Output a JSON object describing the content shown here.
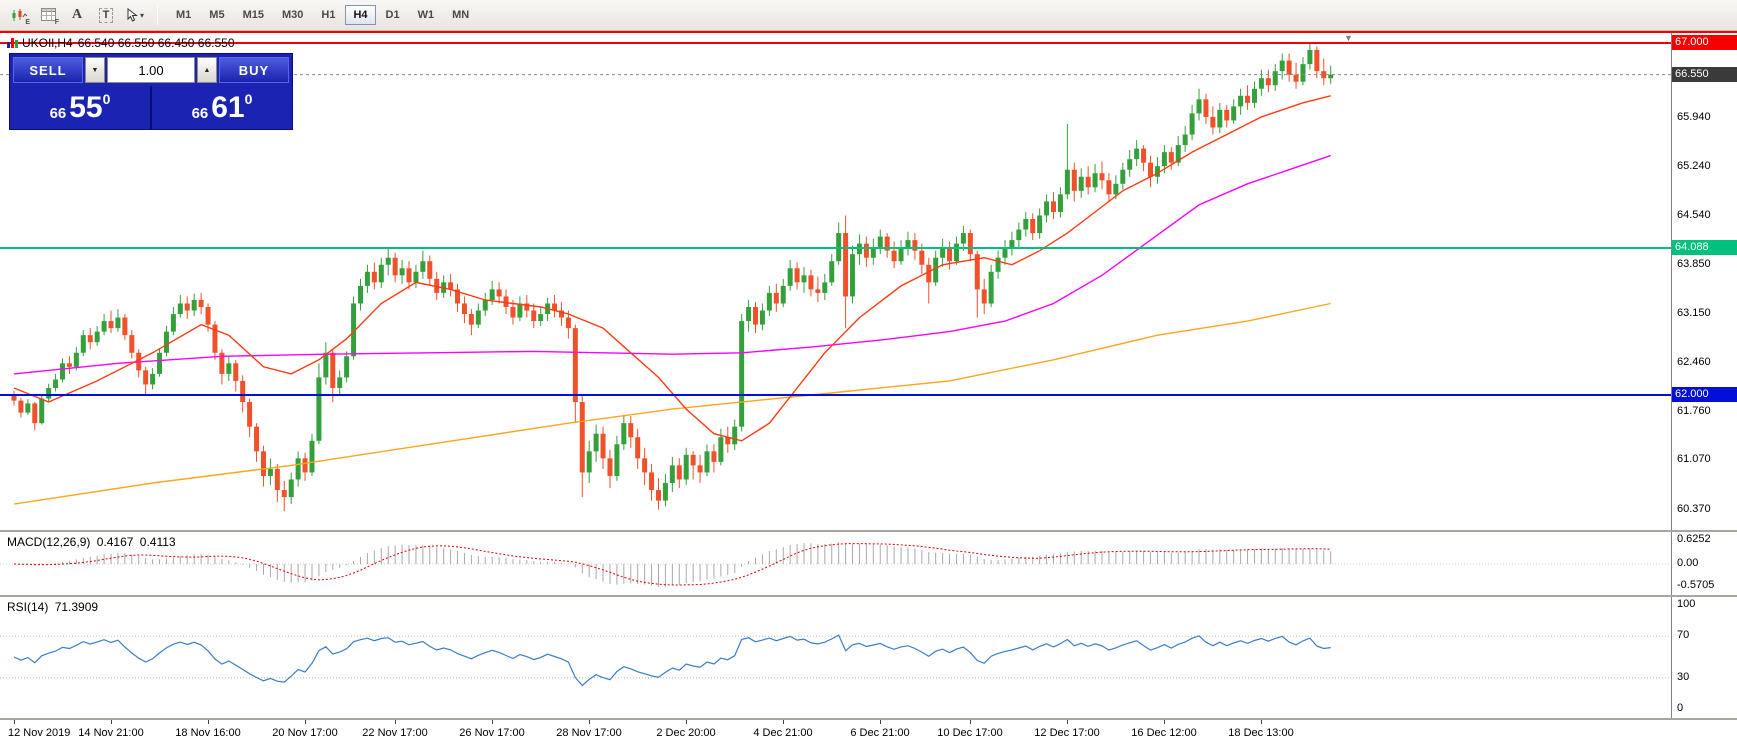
{
  "toolbar": {
    "tools": [
      {
        "name": "expert-advisors",
        "sub": "E"
      },
      {
        "name": "data-grid",
        "sub": "F"
      },
      {
        "name": "font-tool",
        "label": "A"
      },
      {
        "name": "text-tool",
        "label": "T"
      },
      {
        "name": "cursor-tool",
        "label": ""
      }
    ],
    "timeframes": [
      "M1",
      "M5",
      "M15",
      "M30",
      "H1",
      "H4",
      "D1",
      "W1",
      "MN"
    ],
    "active_timeframe": "H4"
  },
  "chart_header": {
    "title_symbol": "UKOIl,H4",
    "ohlc": "66.540 66.550 66.450 66.550"
  },
  "trade_panel": {
    "sell_label": "SELL",
    "buy_label": "BUY",
    "volume": "1.00",
    "sell_price": {
      "big_prefix": "66",
      "pips": "55",
      "sup": "0"
    },
    "buy_price": {
      "big_prefix": "66",
      "pips": "61",
      "sup": "0"
    }
  },
  "macd_panel": {
    "label": "MACD(12,26,9)",
    "value_main": "0.4167",
    "value_signal": "0.4113",
    "axis": [
      "0.6252",
      "0.00",
      "-0.5705"
    ]
  },
  "rsi_panel": {
    "label": "RSI(14)",
    "value": "71.3909",
    "axis": [
      "100",
      "70",
      "30",
      "0"
    ],
    "levels": [
      70,
      30
    ]
  },
  "chart_data": {
    "type": "candlestick",
    "symbol": "UKOIl",
    "timeframe": "H4",
    "title": "UKOIl,H4 66.540 66.550 66.450 66.550",
    "current_price": 66.55,
    "open_first": 62.0,
    "ylim": [
      60.37,
      67.0
    ],
    "colors": {
      "bull": "#33a03c",
      "bear": "#f0502a",
      "ma_fast": "#ff3b12",
      "ma_mid": "#ff00ff",
      "ma_slow": "#ffa51e",
      "rsi": "#3b7dc8",
      "macd_hist": "#a8a8a8",
      "macd_signal": "#e00000",
      "level_red": "#f40000",
      "level_green": "#00c07d",
      "level_blue": "#0010d8"
    },
    "price_axis": [
      {
        "label": "67.000",
        "value": 67.0,
        "style": "red"
      },
      {
        "label": "66.550",
        "value": 66.55,
        "style": "current"
      },
      {
        "label": "65.940",
        "value": 65.94,
        "style": "plain"
      },
      {
        "label": "65.240",
        "value": 65.24,
        "style": "plain"
      },
      {
        "label": "64.540",
        "value": 64.54,
        "style": "plain"
      },
      {
        "label": "64.088",
        "value": 64.088,
        "style": "green"
      },
      {
        "label": "63.850",
        "value": 63.85,
        "style": "plain"
      },
      {
        "label": "63.150",
        "value": 63.15,
        "style": "plain"
      },
      {
        "label": "62.460",
        "value": 62.46,
        "style": "plain"
      },
      {
        "label": "62.000",
        "value": 62.0,
        "style": "blue"
      },
      {
        "label": "61.760",
        "value": 61.76,
        "style": "plain"
      },
      {
        "label": "61.070",
        "value": 61.07,
        "style": "plain"
      },
      {
        "label": "60.370",
        "value": 60.37,
        "style": "plain"
      }
    ],
    "levels": [
      {
        "value": 67.0,
        "color": "#f40000"
      },
      {
        "value": 64.088,
        "color": "#00c07d"
      },
      {
        "value": 62.0,
        "color": "#0010d8"
      }
    ],
    "time_axis": [
      {
        "label": "12 Nov 2019",
        "i": 0
      },
      {
        "label": "14 Nov 21:00",
        "i": 14
      },
      {
        "label": "18 Nov 16:00",
        "i": 28
      },
      {
        "label": "20 Nov 17:00",
        "i": 42
      },
      {
        "label": "22 Nov 17:00",
        "i": 55
      },
      {
        "label": "26 Nov 17:00",
        "i": 69
      },
      {
        "label": "28 Nov 17:00",
        "i": 83
      },
      {
        "label": "2 Dec 20:00",
        "i": 97
      },
      {
        "label": "4 Dec 21:00",
        "i": 111
      },
      {
        "label": "6 Dec 21:00",
        "i": 125
      },
      {
        "label": "10 Dec 17:00",
        "i": 138
      },
      {
        "label": "12 Dec 17:00",
        "i": 152
      },
      {
        "label": "16 Dec 12:00",
        "i": 166
      },
      {
        "label": "18 Dec 13:00",
        "i": 180
      }
    ],
    "ma_fast": [
      [
        0,
        62.1
      ],
      [
        5,
        61.9
      ],
      [
        12,
        62.2
      ],
      [
        20,
        62.6
      ],
      [
        27,
        63.0
      ],
      [
        31,
        62.85
      ],
      [
        36,
        62.4
      ],
      [
        40,
        62.3
      ],
      [
        44,
        62.5
      ],
      [
        48,
        62.8
      ],
      [
        53,
        63.3
      ],
      [
        58,
        63.6
      ],
      [
        63,
        63.5
      ],
      [
        68,
        63.35
      ],
      [
        72,
        63.3
      ],
      [
        76,
        63.25
      ],
      [
        80,
        63.15
      ],
      [
        85,
        62.95
      ],
      [
        89,
        62.6
      ],
      [
        93,
        62.25
      ],
      [
        97,
        61.8
      ],
      [
        101,
        61.45
      ],
      [
        105,
        61.35
      ],
      [
        109,
        61.6
      ],
      [
        113,
        62.1
      ],
      [
        117,
        62.6
      ],
      [
        122,
        63.1
      ],
      [
        128,
        63.55
      ],
      [
        134,
        63.85
      ],
      [
        140,
        63.95
      ],
      [
        144,
        63.85
      ],
      [
        148,
        64.05
      ],
      [
        152,
        64.3
      ],
      [
        156,
        64.6
      ],
      [
        160,
        64.9
      ],
      [
        165,
        65.15
      ],
      [
        170,
        65.45
      ],
      [
        175,
        65.7
      ],
      [
        180,
        65.95
      ],
      [
        186,
        66.15
      ],
      [
        190,
        66.25
      ]
    ],
    "ma_mid": [
      [
        0,
        62.3
      ],
      [
        15,
        62.45
      ],
      [
        30,
        62.55
      ],
      [
        45,
        62.58
      ],
      [
        60,
        62.6
      ],
      [
        75,
        62.62
      ],
      [
        85,
        62.6
      ],
      [
        95,
        62.58
      ],
      [
        105,
        62.6
      ],
      [
        115,
        62.68
      ],
      [
        125,
        62.78
      ],
      [
        135,
        62.9
      ],
      [
        143,
        63.05
      ],
      [
        150,
        63.3
      ],
      [
        157,
        63.7
      ],
      [
        164,
        64.2
      ],
      [
        171,
        64.7
      ],
      [
        178,
        65.0
      ],
      [
        184,
        65.2
      ],
      [
        190,
        65.4
      ]
    ],
    "ma_slow": [
      [
        0,
        60.45
      ],
      [
        20,
        60.75
      ],
      [
        40,
        61.0
      ],
      [
        60,
        61.3
      ],
      [
        80,
        61.6
      ],
      [
        95,
        61.8
      ],
      [
        110,
        61.95
      ],
      [
        120,
        62.05
      ],
      [
        135,
        62.2
      ],
      [
        150,
        62.5
      ],
      [
        165,
        62.85
      ],
      [
        178,
        63.05
      ],
      [
        190,
        63.3
      ]
    ],
    "candles": [
      [
        61.92,
        61.85,
        62.06
      ],
      [
        61.75,
        61.68,
        61.96
      ],
      [
        61.88,
        61.72,
        61.94
      ],
      [
        61.6,
        61.5,
        61.9
      ],
      [
        61.95,
        61.58,
        62.0
      ],
      [
        62.1,
        61.9,
        62.16
      ],
      [
        62.22,
        62.05,
        62.3
      ],
      [
        62.45,
        62.18,
        62.52
      ],
      [
        62.4,
        62.3,
        62.55
      ],
      [
        62.6,
        62.35,
        62.68
      ],
      [
        62.85,
        62.55,
        62.92
      ],
      [
        62.75,
        62.65,
        62.95
      ],
      [
        62.9,
        62.7,
        62.98
      ],
      [
        63.05,
        62.85,
        63.15
      ],
      [
        62.95,
        62.88,
        63.2
      ],
      [
        63.1,
        62.9,
        63.22
      ],
      [
        62.85,
        62.78,
        63.15
      ],
      [
        62.6,
        62.52,
        62.92
      ],
      [
        62.35,
        62.25,
        62.65
      ],
      [
        62.15,
        62.0,
        62.4
      ],
      [
        62.3,
        62.08,
        62.38
      ],
      [
        62.6,
        62.26,
        62.66
      ],
      [
        62.9,
        62.55,
        62.98
      ],
      [
        63.15,
        62.85,
        63.25
      ],
      [
        63.3,
        63.1,
        63.42
      ],
      [
        63.2,
        63.08,
        63.4
      ],
      [
        63.35,
        63.12,
        63.44
      ],
      [
        63.25,
        63.15,
        63.45
      ],
      [
        63.0,
        62.9,
        63.3
      ],
      [
        62.6,
        62.5,
        63.05
      ],
      [
        62.3,
        62.15,
        62.65
      ],
      [
        62.45,
        62.2,
        62.55
      ],
      [
        62.2,
        62.05,
        62.5
      ],
      [
        61.9,
        61.75,
        62.28
      ],
      [
        61.55,
        61.4,
        61.95
      ],
      [
        61.2,
        61.05,
        61.6
      ],
      [
        60.85,
        60.7,
        61.28
      ],
      [
        60.95,
        60.72,
        61.1
      ],
      [
        60.65,
        60.48,
        61.02
      ],
      [
        60.55,
        60.35,
        60.78
      ],
      [
        60.8,
        60.45,
        60.9
      ],
      [
        61.1,
        60.7,
        61.2
      ],
      [
        60.9,
        60.78,
        61.18
      ],
      [
        61.35,
        60.85,
        61.45
      ],
      [
        62.25,
        61.3,
        62.45
      ],
      [
        62.6,
        62.15,
        62.75
      ],
      [
        62.1,
        61.9,
        62.65
      ],
      [
        62.25,
        62.0,
        62.35
      ],
      [
        62.55,
        62.18,
        62.62
      ],
      [
        63.3,
        62.5,
        63.4
      ],
      [
        63.55,
        63.2,
        63.65
      ],
      [
        63.75,
        63.45,
        63.85
      ],
      [
        63.6,
        63.5,
        63.88
      ],
      [
        63.85,
        63.52,
        63.95
      ],
      [
        63.95,
        63.7,
        64.1
      ],
      [
        63.7,
        63.6,
        64.02
      ],
      [
        63.8,
        63.58,
        63.92
      ],
      [
        63.6,
        63.5,
        63.9
      ],
      [
        63.75,
        63.52,
        63.85
      ],
      [
        63.9,
        63.65,
        64.05
      ],
      [
        63.65,
        63.55,
        63.98
      ],
      [
        63.45,
        63.35,
        63.75
      ],
      [
        63.6,
        63.38,
        63.7
      ],
      [
        63.5,
        63.4,
        63.72
      ],
      [
        63.3,
        63.18,
        63.58
      ],
      [
        63.15,
        63.02,
        63.4
      ],
      [
        63.0,
        62.85,
        63.22
      ],
      [
        63.2,
        62.95,
        63.3
      ],
      [
        63.35,
        63.12,
        63.45
      ],
      [
        63.5,
        63.28,
        63.62
      ],
      [
        63.4,
        63.3,
        63.6
      ],
      [
        63.25,
        63.15,
        63.5
      ],
      [
        63.1,
        63.0,
        63.35
      ],
      [
        63.3,
        63.05,
        63.4
      ],
      [
        63.2,
        63.1,
        63.42
      ],
      [
        63.05,
        62.95,
        63.3
      ],
      [
        63.15,
        62.98,
        63.25
      ],
      [
        63.3,
        63.05,
        63.38
      ],
      [
        63.2,
        63.1,
        63.42
      ],
      [
        63.1,
        62.98,
        63.32
      ],
      [
        62.95,
        62.8,
        63.2
      ],
      [
        61.9,
        61.6,
        63.0
      ],
      [
        60.9,
        60.55,
        62.0
      ],
      [
        61.2,
        60.75,
        61.35
      ],
      [
        61.45,
        61.05,
        61.58
      ],
      [
        61.1,
        60.95,
        61.55
      ],
      [
        60.85,
        60.68,
        61.22
      ],
      [
        61.3,
        60.78,
        61.42
      ],
      [
        61.6,
        61.22,
        61.72
      ],
      [
        61.4,
        61.25,
        61.7
      ],
      [
        61.1,
        60.95,
        61.52
      ],
      [
        60.9,
        60.72,
        61.25
      ],
      [
        60.65,
        60.5,
        61.02
      ],
      [
        60.5,
        60.37,
        60.82
      ],
      [
        60.75,
        60.42,
        60.88
      ],
      [
        61.0,
        60.62,
        61.12
      ],
      [
        60.8,
        60.68,
        61.1
      ],
      [
        61.15,
        60.72,
        61.25
      ],
      [
        61.0,
        60.8,
        61.2
      ],
      [
        60.9,
        60.75,
        61.15
      ],
      [
        61.2,
        60.85,
        61.3
      ],
      [
        61.05,
        60.9,
        61.3
      ],
      [
        61.4,
        61.0,
        61.52
      ],
      [
        61.3,
        61.18,
        61.55
      ],
      [
        61.55,
        61.22,
        61.65
      ],
      [
        63.05,
        61.48,
        63.15
      ],
      [
        63.25,
        62.9,
        63.35
      ],
      [
        63.0,
        62.88,
        63.32
      ],
      [
        63.2,
        62.92,
        63.3
      ],
      [
        63.45,
        63.12,
        63.55
      ],
      [
        63.3,
        63.18,
        63.58
      ],
      [
        63.55,
        63.25,
        63.65
      ],
      [
        63.8,
        63.48,
        63.92
      ],
      [
        63.6,
        63.5,
        63.88
      ],
      [
        63.7,
        63.45,
        63.82
      ],
      [
        63.5,
        63.4,
        63.78
      ],
      [
        63.45,
        63.32,
        63.68
      ],
      [
        63.6,
        63.35,
        63.72
      ],
      [
        63.9,
        63.55,
        64.0
      ],
      [
        64.3,
        63.85,
        64.45
      ],
      [
        63.4,
        62.95,
        64.55
      ],
      [
        64.0,
        63.3,
        64.12
      ],
      [
        64.15,
        63.85,
        64.28
      ],
      [
        63.95,
        63.82,
        64.25
      ],
      [
        64.1,
        63.85,
        64.22
      ],
      [
        64.25,
        64.0,
        64.35
      ],
      [
        64.05,
        63.95,
        64.3
      ],
      [
        63.9,
        63.8,
        64.18
      ],
      [
        64.1,
        63.85,
        64.2
      ],
      [
        64.2,
        63.98,
        64.32
      ],
      [
        64.05,
        63.92,
        64.3
      ],
      [
        63.85,
        63.72,
        64.15
      ],
      [
        63.6,
        63.3,
        63.95
      ],
      [
        63.95,
        63.55,
        64.05
      ],
      [
        64.1,
        63.82,
        64.22
      ],
      [
        63.9,
        63.78,
        64.18
      ],
      [
        64.15,
        63.85,
        64.25
      ],
      [
        64.3,
        64.05,
        64.4
      ],
      [
        64.0,
        63.9,
        64.35
      ],
      [
        63.5,
        63.1,
        64.05
      ],
      [
        63.3,
        63.15,
        63.65
      ],
      [
        63.75,
        63.25,
        63.85
      ],
      [
        63.95,
        63.65,
        64.05
      ],
      [
        64.1,
        63.85,
        64.2
      ],
      [
        64.2,
        63.98,
        64.32
      ],
      [
        64.35,
        64.1,
        64.45
      ],
      [
        64.5,
        64.25,
        64.6
      ],
      [
        64.3,
        64.2,
        64.58
      ],
      [
        64.55,
        64.22,
        64.65
      ],
      [
        64.75,
        64.45,
        64.85
      ],
      [
        64.6,
        64.5,
        64.88
      ],
      [
        64.85,
        64.52,
        64.95
      ],
      [
        65.2,
        64.78,
        65.85
      ],
      [
        64.9,
        64.75,
        65.3
      ],
      [
        65.1,
        64.8,
        65.22
      ],
      [
        64.95,
        64.85,
        65.25
      ],
      [
        65.15,
        64.88,
        65.28
      ],
      [
        65.05,
        64.92,
        65.32
      ],
      [
        64.85,
        64.75,
        65.15
      ],
      [
        65.0,
        64.78,
        65.12
      ],
      [
        65.2,
        64.92,
        65.3
      ],
      [
        65.35,
        65.1,
        65.48
      ],
      [
        65.5,
        65.25,
        65.62
      ],
      [
        65.3,
        65.18,
        65.55
      ],
      [
        65.1,
        64.95,
        65.4
      ],
      [
        65.25,
        65.0,
        65.38
      ],
      [
        65.45,
        65.15,
        65.55
      ],
      [
        65.3,
        65.2,
        65.52
      ],
      [
        65.55,
        65.25,
        65.68
      ],
      [
        65.7,
        65.45,
        65.82
      ],
      [
        66.0,
        65.62,
        66.12
      ],
      [
        66.2,
        65.9,
        66.35
      ],
      [
        65.95,
        65.85,
        66.28
      ],
      [
        65.8,
        65.7,
        66.1
      ],
      [
        66.05,
        65.72,
        66.15
      ],
      [
        65.9,
        65.8,
        66.12
      ],
      [
        66.1,
        65.85,
        66.2
      ],
      [
        66.25,
        65.98,
        66.35
      ],
      [
        66.15,
        66.05,
        66.4
      ],
      [
        66.35,
        66.08,
        66.45
      ],
      [
        66.5,
        66.25,
        66.62
      ],
      [
        66.4,
        66.3,
        66.62
      ],
      [
        66.6,
        66.32,
        66.7
      ],
      [
        66.75,
        66.48,
        66.85
      ],
      [
        66.55,
        66.45,
        66.85
      ],
      [
        66.45,
        66.35,
        66.72
      ],
      [
        66.7,
        66.4,
        66.8
      ],
      [
        66.9,
        66.62,
        67.0
      ],
      [
        66.6,
        66.5,
        66.95
      ],
      [
        66.5,
        66.4,
        66.78
      ],
      [
        66.55,
        66.42,
        66.68
      ]
    ]
  }
}
